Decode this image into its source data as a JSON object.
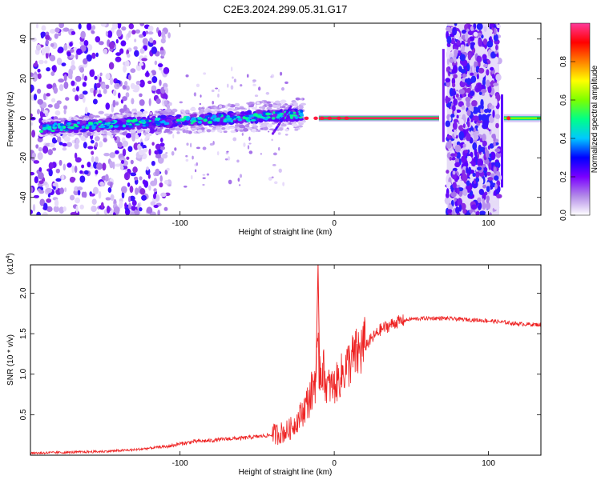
{
  "title": "C2E3.2024.299.05.31.G17",
  "chart_data": [
    {
      "type": "heatmap",
      "xlabel": "Height of straight line (km)",
      "ylabel": "Frequency (Hz)",
      "xlim": [
        -197,
        134
      ],
      "ylim": [
        -49,
        48
      ],
      "xticks": [
        -100,
        0,
        100
      ],
      "yticks": [
        -40,
        -20,
        0,
        20,
        40
      ],
      "colorbar": {
        "label": "Normalized spectral amplitude",
        "range": [
          0,
          1
        ],
        "ticks": [
          "0.0",
          "0.2",
          "0.4",
          "0.6",
          "0.8"
        ],
        "colors": [
          "#ffffff",
          "#b28ae8",
          "#7a00ff",
          "#0000ff",
          "#00c8ff",
          "#00ff88",
          "#7cff00",
          "#ffff00",
          "#ff8000",
          "#ff0000",
          "#ff3a9a"
        ]
      },
      "features": [
        {
          "name": "noisy signal band",
          "x_range": [
            -190,
            -20
          ],
          "freq_from": -5,
          "freq_to": 2
        },
        {
          "name": "carrier line",
          "x_range": [
            -10,
            68
          ],
          "freq": 0
        },
        {
          "name": "noise burst",
          "x_range": [
            73,
            107
          ],
          "freq_range": [
            -49,
            48
          ]
        },
        {
          "name": "carrier line",
          "x_range": [
            110,
            134
          ],
          "freq": 0
        }
      ]
    },
    {
      "type": "line",
      "xlabel": "Height of straight line (km)",
      "ylabel": "SNR (10 * v/v)",
      "y_multiplier": "(x10",
      "y_multiplier_exp": "4",
      "xlim": [
        -197,
        134
      ],
      "ylim": [
        0,
        2.35
      ],
      "xticks": [
        -100,
        0,
        100
      ],
      "yticks": [
        "0.5",
        "1.0",
        "1.5",
        "2.0"
      ],
      "series": [
        {
          "color": "#ee2222",
          "x": [
            -197,
            -170,
            -150,
            -130,
            -110,
            -100,
            -90,
            -80,
            -70,
            -60,
            -50,
            -40,
            -30,
            -25,
            -20,
            -15,
            -12,
            -10,
            -7,
            -5,
            0,
            5,
            10,
            15,
            20,
            25,
            30,
            40,
            50,
            60,
            70,
            80,
            90,
            100,
            110,
            120,
            134
          ],
          "y": [
            0.02,
            0.03,
            0.04,
            0.06,
            0.1,
            0.14,
            0.17,
            0.18,
            0.2,
            0.21,
            0.23,
            0.25,
            0.3,
            0.4,
            0.55,
            0.75,
            1.0,
            1.15,
            1.05,
            0.85,
            0.85,
            1.0,
            1.15,
            1.25,
            1.35,
            1.45,
            1.55,
            1.64,
            1.68,
            1.69,
            1.69,
            1.68,
            1.67,
            1.66,
            1.64,
            1.62,
            1.61
          ]
        }
      ],
      "spike": {
        "x": -10.5,
        "y": 2.35
      }
    }
  ]
}
